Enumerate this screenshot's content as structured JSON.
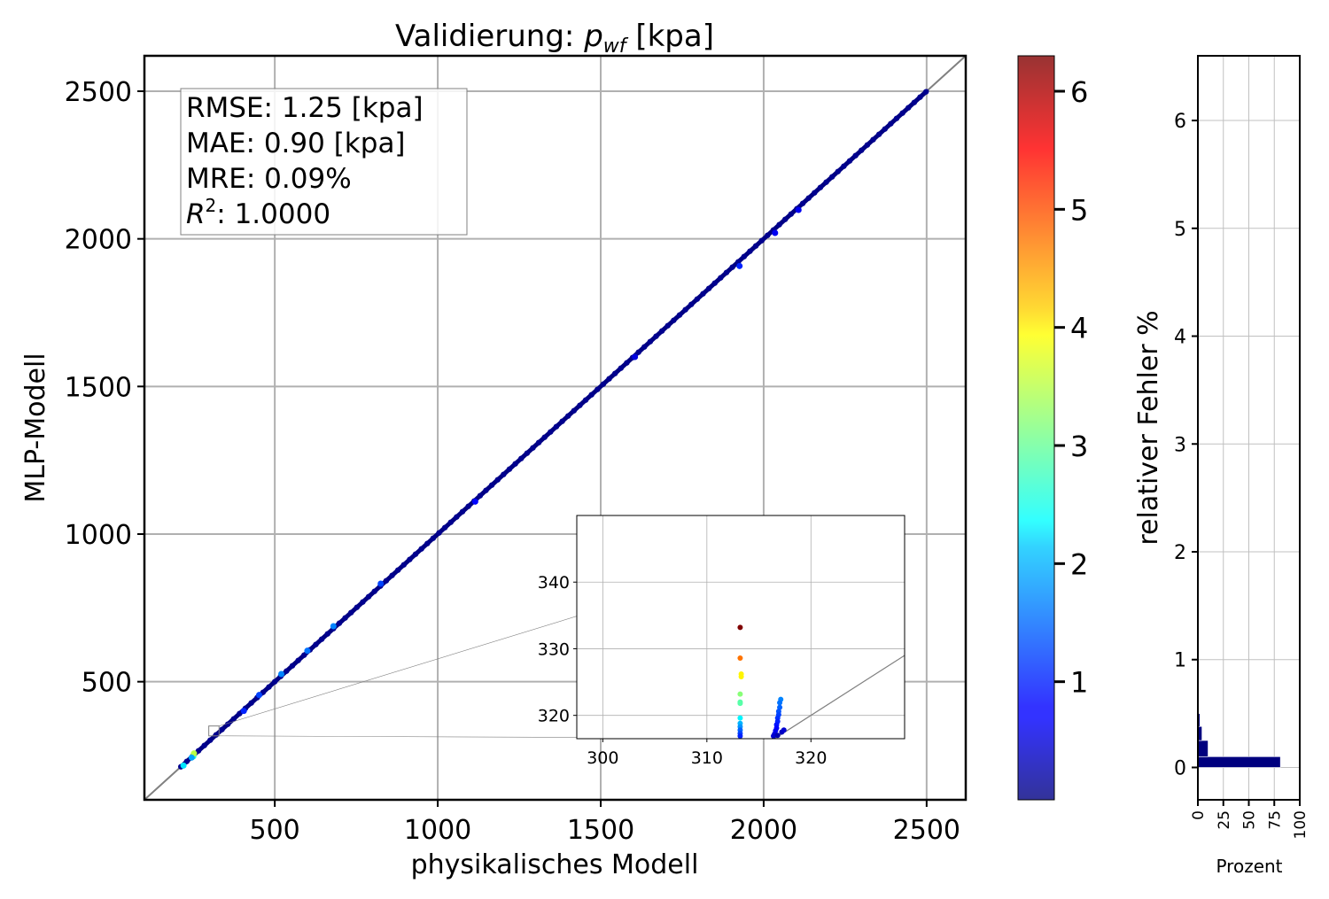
{
  "chart_data": [
    {
      "type": "scatter",
      "title_prefix": "Validierung: ",
      "title_var": "p",
      "title_sub": "wf",
      "title_unit": " [kpa]",
      "xlabel": "physikalisches Modell",
      "ylabel": "MLP-Modell",
      "xlim": [
        100,
        2620
      ],
      "ylim": [
        100,
        2620
      ],
      "xticks": [
        500,
        1000,
        1500,
        2000,
        2500
      ],
      "yticks": [
        500,
        1000,
        1500,
        2000,
        2500
      ],
      "grid": true,
      "reference_line": "y = x",
      "stats": {
        "rmse": "RMSE: 1.25 [kpa]",
        "mae": "MAE: 0.90 [kpa]",
        "mre": "MRE: 0.09%",
        "r2_label": "R",
        "r2_value": ": 1.0000"
      },
      "color_by": "relativer Fehler %",
      "x_range": [
        212,
        2500
      ],
      "outliers": [
        {
          "x": 1926,
          "y": 1908,
          "err": 1.0
        },
        {
          "x": 2035,
          "y": 2020,
          "err": 0.7
        },
        {
          "x": 2107,
          "y": 2098,
          "err": 0.7
        },
        {
          "x": 1605,
          "y": 1600,
          "err": 0.6
        },
        {
          "x": 1115,
          "y": 1110,
          "err": 0.8
        },
        {
          "x": 825,
          "y": 832,
          "err": 1.2
        },
        {
          "x": 680,
          "y": 688,
          "err": 1.6
        },
        {
          "x": 600,
          "y": 605,
          "err": 1.5
        },
        {
          "x": 520,
          "y": 526,
          "err": 1.6
        },
        {
          "x": 452,
          "y": 455,
          "err": 1.2
        },
        {
          "x": 405,
          "y": 401,
          "err": 1.0
        },
        {
          "x": 250,
          "y": 247,
          "err": 2.6
        },
        {
          "x": 252,
          "y": 257,
          "err": 3.5
        },
        {
          "x": 245,
          "y": 243,
          "err": 1.8
        },
        {
          "x": 220,
          "y": 216,
          "err": 2.2
        }
      ]
    },
    {
      "type": "scatter",
      "role": "inset zoom",
      "xlim": [
        297.5,
        329
      ],
      "ylim": [
        316.5,
        350
      ],
      "xticks": [
        300,
        310,
        320
      ],
      "yticks": [
        320,
        330,
        340
      ],
      "grid": true,
      "reference_line": "y = x",
      "points": [
        {
          "x": 313.2,
          "y": 333.2,
          "err": 6.3
        },
        {
          "x": 313.2,
          "y": 328.6,
          "err": 4.8
        },
        {
          "x": 313.3,
          "y": 326.2,
          "err": 4.0
        },
        {
          "x": 313.3,
          "y": 325.8,
          "err": 4.0
        },
        {
          "x": 313.2,
          "y": 323.2,
          "err": 3.2
        },
        {
          "x": 313.2,
          "y": 322.0,
          "err": 2.9
        },
        {
          "x": 313.2,
          "y": 321.8,
          "err": 2.9
        },
        {
          "x": 313.2,
          "y": 319.6,
          "err": 2.3
        },
        {
          "x": 313.2,
          "y": 318.8,
          "err": 1.9
        },
        {
          "x": 313.2,
          "y": 318.3,
          "err": 1.7
        },
        {
          "x": 313.2,
          "y": 317.8,
          "err": 1.4
        },
        {
          "x": 313.2,
          "y": 317.3,
          "err": 1.2
        },
        {
          "x": 313.2,
          "y": 316.9,
          "err": 1.0
        },
        {
          "x": 317.1,
          "y": 322.4,
          "err": 1.6
        },
        {
          "x": 317.0,
          "y": 321.9,
          "err": 1.5
        },
        {
          "x": 317.0,
          "y": 321.2,
          "err": 1.4
        },
        {
          "x": 316.9,
          "y": 320.6,
          "err": 1.3
        },
        {
          "x": 316.9,
          "y": 320.1,
          "err": 1.2
        },
        {
          "x": 316.8,
          "y": 319.6,
          "err": 1.1
        },
        {
          "x": 316.8,
          "y": 319.1,
          "err": 1.0
        },
        {
          "x": 316.7,
          "y": 318.6,
          "err": 0.9
        },
        {
          "x": 316.7,
          "y": 318.1,
          "err": 0.8
        },
        {
          "x": 316.6,
          "y": 317.7,
          "err": 0.7
        },
        {
          "x": 316.5,
          "y": 317.2,
          "err": 0.6
        },
        {
          "x": 316.4,
          "y": 316.9,
          "err": 0.5
        },
        {
          "x": 316.8,
          "y": 317.0,
          "err": 0.3
        },
        {
          "x": 317.2,
          "y": 317.5,
          "err": 0.4
        },
        {
          "x": 317.4,
          "y": 317.8,
          "err": 0.5
        }
      ]
    },
    {
      "type": "heatmap",
      "role": "colorbar",
      "label": "relativer Fehler %",
      "range": [
        0,
        6.3
      ],
      "ticks": [
        1,
        2,
        3,
        4,
        5,
        6
      ],
      "colormap": "jet"
    },
    {
      "type": "bar",
      "role": "histogram",
      "orientation": "horizontal",
      "xlabel": "Prozent",
      "xlim": [
        0,
        100
      ],
      "ylim": [
        -0.3,
        6.6
      ],
      "xticks": [
        0,
        25,
        50,
        75,
        100
      ],
      "yticks": [
        0,
        1,
        2,
        3,
        4,
        5,
        6
      ],
      "bins": [
        {
          "from": 0.0,
          "to": 0.1,
          "value": 81
        },
        {
          "from": 0.1,
          "to": 0.25,
          "value": 10
        },
        {
          "from": 0.25,
          "to": 0.38,
          "value": 4
        },
        {
          "from": 0.38,
          "to": 0.5,
          "value": 2
        }
      ],
      "bar_color": "#00007f"
    }
  ]
}
